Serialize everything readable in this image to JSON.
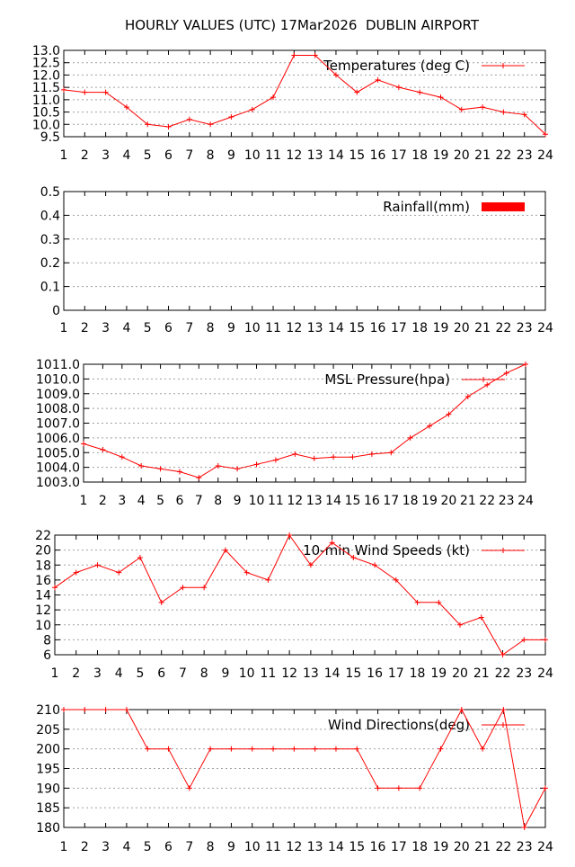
{
  "page_title": "HOURLY VALUES (UTC) 17Mar2026  DUBLIN AIRPORT",
  "line_color": "#ff0000",
  "chart_data": [
    {
      "id": "temperature",
      "type": "line",
      "legend": "Temperatures (deg C)",
      "legend_style": "line",
      "x": [
        1,
        2,
        3,
        4,
        5,
        6,
        7,
        8,
        9,
        10,
        11,
        12,
        13,
        14,
        15,
        16,
        17,
        18,
        19,
        20,
        21,
        22,
        23,
        24
      ],
      "values": [
        11.4,
        11.3,
        11.3,
        10.7,
        10.0,
        9.9,
        10.2,
        10.0,
        10.3,
        10.6,
        11.1,
        12.8,
        12.8,
        12.0,
        11.3,
        11.8,
        11.5,
        11.3,
        11.1,
        10.6,
        10.7,
        10.5,
        10.4,
        9.6
      ],
      "ylim": [
        9.5,
        13.0
      ],
      "yticks": [
        "9.5",
        "10.0",
        "10.5",
        "11.0",
        "11.5",
        "12.0",
        "12.5",
        "13.0"
      ],
      "grid": true,
      "legend_position": "top-right"
    },
    {
      "id": "rainfall",
      "type": "bar",
      "legend": "Rainfall(mm)",
      "legend_style": "box",
      "x": [
        1,
        2,
        3,
        4,
        5,
        6,
        7,
        8,
        9,
        10,
        11,
        12,
        13,
        14,
        15,
        16,
        17,
        18,
        19,
        20,
        21,
        22,
        23,
        24
      ],
      "values": [
        0,
        0,
        0,
        0,
        0,
        0,
        0,
        0,
        0,
        0,
        0,
        0,
        0,
        0,
        0,
        0,
        0,
        0,
        0,
        0,
        0,
        0,
        0,
        0
      ],
      "ylim": [
        0,
        0.5
      ],
      "yticks": [
        "0",
        "0.1",
        "0.2",
        "0.3",
        "0.4",
        "0.5"
      ],
      "grid": true,
      "legend_position": "top-right"
    },
    {
      "id": "pressure",
      "type": "line",
      "legend": "MSL Pressure(hpa)",
      "legend_style": "line",
      "x": [
        1,
        2,
        3,
        4,
        5,
        6,
        7,
        8,
        9,
        10,
        11,
        12,
        13,
        14,
        15,
        16,
        17,
        18,
        19,
        20,
        21,
        22,
        23,
        24
      ],
      "values": [
        1005.6,
        1005.2,
        1004.7,
        1004.1,
        1003.9,
        1003.7,
        1003.3,
        1004.1,
        1003.9,
        1004.2,
        1004.5,
        1004.9,
        1004.6,
        1004.7,
        1004.7,
        1004.9,
        1005.0,
        1006.0,
        1006.8,
        1007.6,
        1008.8,
        1009.6,
        1010.4,
        1011.0
      ],
      "ylim": [
        1003.0,
        1011.0
      ],
      "yticks": [
        "1003.0",
        "1004.0",
        "1005.0",
        "1006.0",
        "1007.0",
        "1008.0",
        "1009.0",
        "1010.0",
        "1011.0"
      ],
      "grid": true,
      "legend_position": "top-right"
    },
    {
      "id": "wind-speed",
      "type": "line",
      "legend": "10-min Wind Speeds (kt)",
      "legend_style": "line",
      "x": [
        1,
        2,
        3,
        4,
        5,
        6,
        7,
        8,
        9,
        10,
        11,
        12,
        13,
        14,
        15,
        16,
        17,
        18,
        19,
        20,
        21,
        22,
        23,
        24
      ],
      "values": [
        15,
        17,
        18,
        17,
        19,
        13,
        15,
        15,
        20,
        17,
        16,
        22,
        18,
        21,
        19,
        18,
        16,
        13,
        13,
        10,
        11,
        6,
        8,
        8
      ],
      "ylim": [
        6,
        22
      ],
      "yticks": [
        "6",
        "8",
        "10",
        "12",
        "14",
        "16",
        "18",
        "20",
        "22"
      ],
      "grid": true,
      "legend_position": "top-right"
    },
    {
      "id": "wind-direction",
      "type": "line",
      "legend": "Wind Directions(deg)",
      "legend_style": "line",
      "x": [
        1,
        2,
        3,
        4,
        5,
        6,
        7,
        8,
        9,
        10,
        11,
        12,
        13,
        14,
        15,
        16,
        17,
        18,
        19,
        20,
        21,
        22,
        23,
        24
      ],
      "values": [
        210,
        210,
        210,
        210,
        200,
        200,
        190,
        200,
        200,
        200,
        200,
        200,
        200,
        200,
        200,
        190,
        190,
        190,
        200,
        210,
        200,
        210,
        180,
        190
      ],
      "ylim": [
        180,
        210
      ],
      "yticks": [
        "180",
        "185",
        "190",
        "195",
        "200",
        "205",
        "210"
      ],
      "grid": true,
      "legend_position": "top-right"
    }
  ]
}
